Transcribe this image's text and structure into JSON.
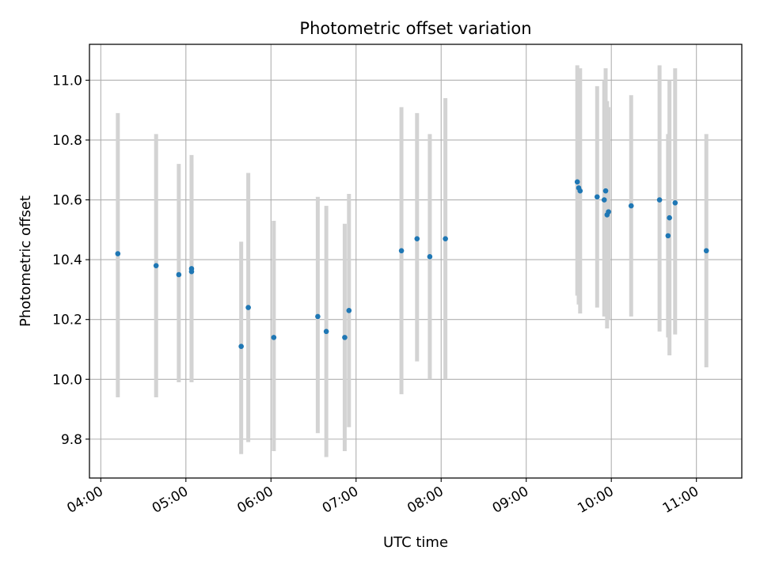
{
  "chart_data": {
    "type": "scatter",
    "title": "Photometric offset variation",
    "xlabel": "UTC time",
    "ylabel": "Photometric offset",
    "x_is_time": true,
    "xlim": [
      "03:52",
      "11:32"
    ],
    "ylim": [
      9.67,
      11.12
    ],
    "x_ticks": [
      "04:00",
      "05:00",
      "06:00",
      "07:00",
      "08:00",
      "09:00",
      "10:00",
      "11:00"
    ],
    "y_ticks": [
      9.8,
      10.0,
      10.2,
      10.4,
      10.6,
      10.8,
      11.0
    ],
    "y_tick_labels": [
      "9.8",
      "10.0",
      "10.2",
      "10.4",
      "10.6",
      "10.8",
      "11.0"
    ],
    "grid": true,
    "point_color": "#1f77b4",
    "errorbar_color": "#d3d3d3",
    "points": [
      {
        "x": "04:12",
        "y": 10.42,
        "ylow": 9.94,
        "yhigh": 10.89
      },
      {
        "x": "04:39",
        "y": 10.38,
        "ylow": 9.94,
        "yhigh": 10.82
      },
      {
        "x": "04:55",
        "y": 10.35,
        "ylow": 9.99,
        "yhigh": 10.72
      },
      {
        "x": "05:04",
        "y": 10.37,
        "ylow": 9.99,
        "yhigh": 10.75
      },
      {
        "x": "05:04",
        "y": 10.36,
        "ylow": 9.99,
        "yhigh": 10.72
      },
      {
        "x": "05:39",
        "y": 10.11,
        "ylow": 9.75,
        "yhigh": 10.46
      },
      {
        "x": "05:44",
        "y": 10.24,
        "ylow": 9.79,
        "yhigh": 10.69
      },
      {
        "x": "06:02",
        "y": 10.14,
        "ylow": 9.76,
        "yhigh": 10.53
      },
      {
        "x": "06:33",
        "y": 10.21,
        "ylow": 9.82,
        "yhigh": 10.61
      },
      {
        "x": "06:39",
        "y": 10.16,
        "ylow": 9.74,
        "yhigh": 10.58
      },
      {
        "x": "06:52",
        "y": 10.14,
        "ylow": 9.76,
        "yhigh": 10.52
      },
      {
        "x": "06:55",
        "y": 10.23,
        "ylow": 9.84,
        "yhigh": 10.62
      },
      {
        "x": "07:32",
        "y": 10.43,
        "ylow": 9.95,
        "yhigh": 10.91
      },
      {
        "x": "07:43",
        "y": 10.47,
        "ylow": 10.06,
        "yhigh": 10.89
      },
      {
        "x": "07:52",
        "y": 10.41,
        "ylow": 10.0,
        "yhigh": 10.82
      },
      {
        "x": "08:03",
        "y": 10.47,
        "ylow": 10.0,
        "yhigh": 10.94
      },
      {
        "x": "09:36",
        "y": 10.66,
        "ylow": 10.28,
        "yhigh": 11.05
      },
      {
        "x": "09:37",
        "y": 10.64,
        "ylow": 10.25,
        "yhigh": 11.03
      },
      {
        "x": "09:38",
        "y": 10.63,
        "ylow": 10.22,
        "yhigh": 11.04
      },
      {
        "x": "09:50",
        "y": 10.61,
        "ylow": 10.24,
        "yhigh": 10.98
      },
      {
        "x": "09:55",
        "y": 10.6,
        "ylow": 10.21,
        "yhigh": 11.0
      },
      {
        "x": "09:56",
        "y": 10.63,
        "ylow": 10.21,
        "yhigh": 11.04
      },
      {
        "x": "09:57",
        "y": 10.55,
        "ylow": 10.17,
        "yhigh": 10.93
      },
      {
        "x": "09:58",
        "y": 10.56,
        "ylow": 10.2,
        "yhigh": 10.91
      },
      {
        "x": "10:14",
        "y": 10.58,
        "ylow": 10.21,
        "yhigh": 10.95
      },
      {
        "x": "10:34",
        "y": 10.6,
        "ylow": 10.16,
        "yhigh": 11.05
      },
      {
        "x": "10:40",
        "y": 10.48,
        "ylow": 10.14,
        "yhigh": 10.82
      },
      {
        "x": "10:41",
        "y": 10.54,
        "ylow": 10.08,
        "yhigh": 11.0
      },
      {
        "x": "10:45",
        "y": 10.59,
        "ylow": 10.15,
        "yhigh": 11.04
      },
      {
        "x": "11:07",
        "y": 10.43,
        "ylow": 10.04,
        "yhigh": 10.82
      }
    ]
  }
}
